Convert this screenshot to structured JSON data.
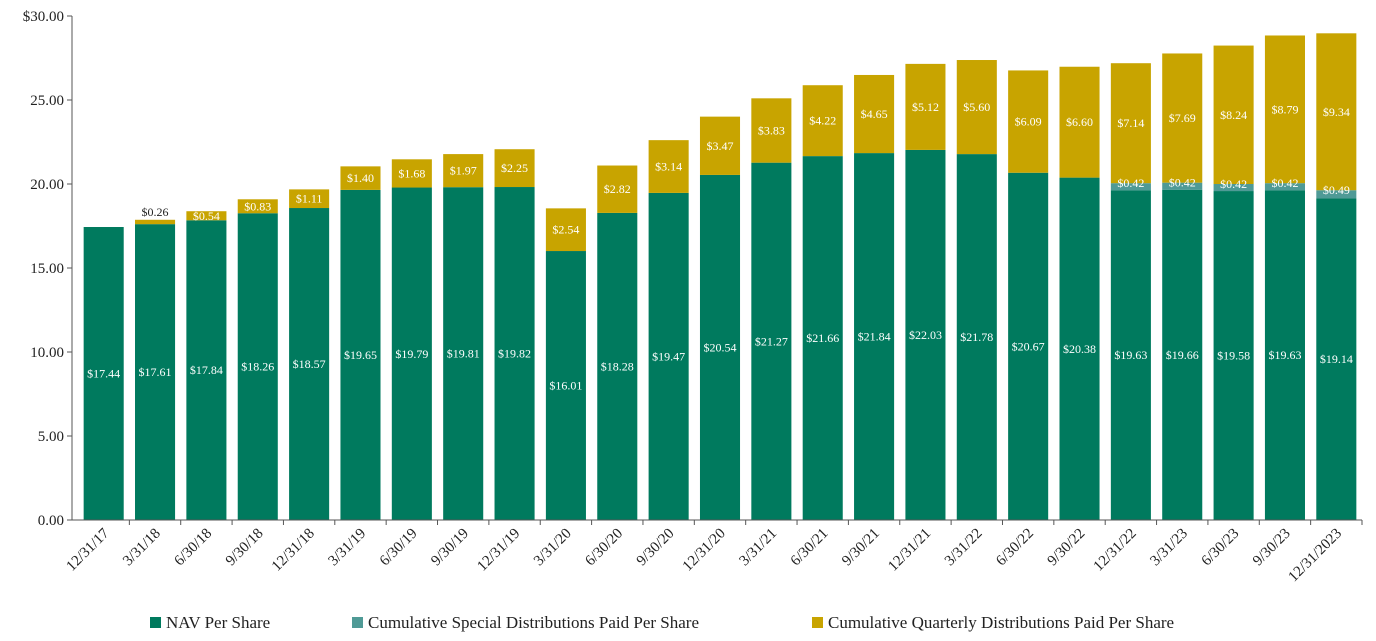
{
  "chart_data": {
    "type": "bar",
    "stacked": true,
    "categories": [
      "12/31/17",
      "3/31/18",
      "6/30/18",
      "9/30/18",
      "12/31/18",
      "3/31/19",
      "6/30/19",
      "9/30/19",
      "12/31/19",
      "3/31/20",
      "6/30/20",
      "9/30/20",
      "12/31/20",
      "3/31/21",
      "6/30/21",
      "9/30/21",
      "12/31/21",
      "3/31/22",
      "6/30/22",
      "9/30/22",
      "12/31/22",
      "3/31/23",
      "6/30/23",
      "9/30/23",
      "12/31/2023"
    ],
    "series": [
      {
        "name": "NAV Per Share",
        "color": "#007a5e",
        "values": [
          17.44,
          17.61,
          17.84,
          18.26,
          18.57,
          19.65,
          19.79,
          19.81,
          19.82,
          16.01,
          18.28,
          19.47,
          20.54,
          21.27,
          21.66,
          21.84,
          22.03,
          21.78,
          20.67,
          20.38,
          19.63,
          19.66,
          19.58,
          19.63,
          19.14
        ],
        "labels": [
          "$17.44",
          "$17.61",
          "$17.84",
          "$18.26",
          "$18.57",
          "$19.65",
          "$19.79",
          "$19.81",
          "$19.82",
          "$16.01",
          "$18.28",
          "$19.47",
          "$20.54",
          "$21.27",
          "$21.66",
          "$21.84",
          "$22.03",
          "$21.78",
          "$20.67",
          "$20.38",
          "$19.63",
          "$19.66",
          "$19.58",
          "$19.63",
          "$19.14"
        ]
      },
      {
        "name": "Cumulative Special Distributions Paid Per Share",
        "color": "#4f9a96",
        "values": [
          0,
          0,
          0,
          0,
          0,
          0,
          0,
          0,
          0,
          0,
          0,
          0,
          0,
          0,
          0,
          0,
          0,
          0,
          0,
          0,
          0.42,
          0.42,
          0.42,
          0.42,
          0.49
        ],
        "labels": [
          "",
          "",
          "",
          "",
          "",
          "",
          "",
          "",
          "",
          "",
          "",
          "",
          "",
          "",
          "",
          "",
          "",
          "",
          "",
          "",
          "$0.42",
          "$0.42",
          "$0.42",
          "$0.42",
          "$0.49"
        ]
      },
      {
        "name": "Cumulative Quarterly Distributions Paid Per Share",
        "color": "#c8a400",
        "values": [
          0,
          0.26,
          0.54,
          0.83,
          1.11,
          1.4,
          1.68,
          1.97,
          2.25,
          2.54,
          2.82,
          3.14,
          3.47,
          3.83,
          4.22,
          4.65,
          5.12,
          5.6,
          6.09,
          6.6,
          7.14,
          7.69,
          8.24,
          8.79,
          9.34
        ],
        "labels": [
          "",
          "$0.26",
          "$0.54",
          "$0.83",
          "$1.11",
          "$1.40",
          "$1.68",
          "$1.97",
          "$2.25",
          "$2.54",
          "$2.82",
          "$3.14",
          "$3.47",
          "$3.83",
          "$4.22",
          "$4.65",
          "$5.12",
          "$5.60",
          "$6.09",
          "$6.60",
          "$7.14",
          "$7.69",
          "$8.24",
          "$8.79",
          "$9.34"
        ]
      }
    ],
    "ylim": [
      0,
      30
    ],
    "yticks": [
      0,
      5,
      10,
      15,
      20,
      25,
      30
    ],
    "ytick_labels": [
      "0.00",
      "5.00",
      "10.00",
      "15.00",
      "20.00",
      "25.00",
      "$30.00"
    ],
    "grid": false,
    "legend": "bottom"
  }
}
